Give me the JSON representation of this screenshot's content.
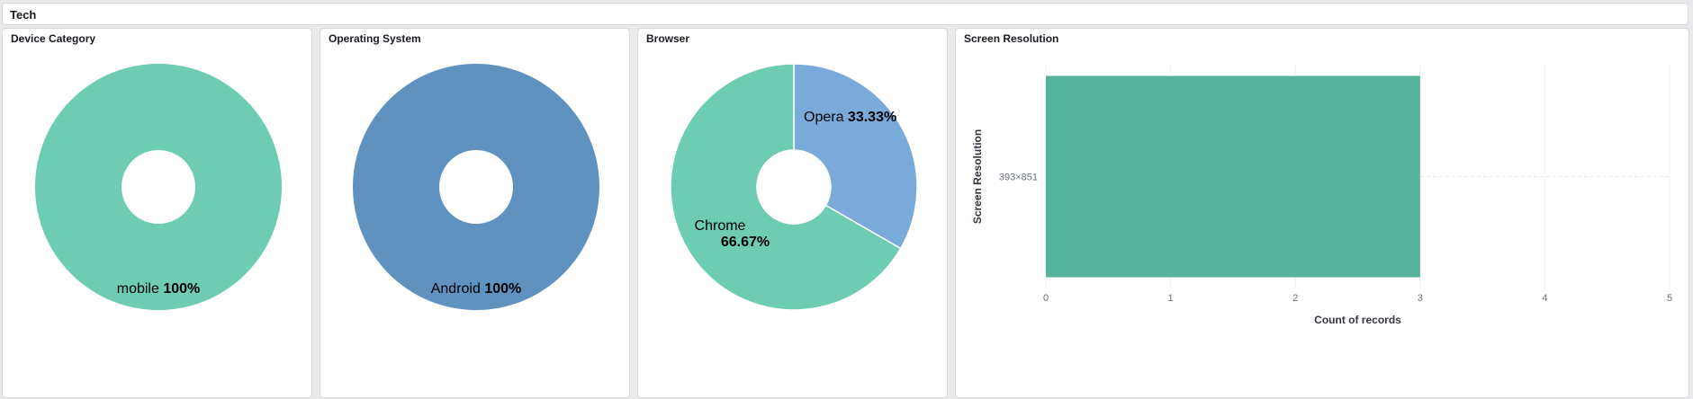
{
  "section_title": "Tech",
  "chart_data": [
    {
      "type": "pie",
      "title": "Device Category",
      "donut": true,
      "slices": [
        {
          "label": "mobile",
          "value": 100,
          "percent_label": "100%",
          "color": "#6dccb1"
        }
      ]
    },
    {
      "type": "pie",
      "title": "Operating System",
      "donut": true,
      "slices": [
        {
          "label": "Android",
          "value": 100,
          "percent_label": "100%",
          "color": "#6092c0"
        }
      ]
    },
    {
      "type": "pie",
      "title": "Browser",
      "donut": true,
      "slices": [
        {
          "label": "Opera",
          "value": 33.33,
          "percent_label": "33.33%",
          "color": "#79aad9"
        },
        {
          "label": "Chrome",
          "value": 66.67,
          "percent_label": "66.67%",
          "color": "#6dccb1"
        }
      ]
    },
    {
      "type": "bar",
      "orientation": "horizontal",
      "title": "Screen Resolution",
      "categories": [
        "393×851"
      ],
      "values": [
        3
      ],
      "xlabel": "Count of records",
      "ylabel": "Screen Resolution",
      "xlim": [
        0,
        5
      ],
      "xticks": [
        0,
        1,
        2,
        3,
        4,
        5
      ],
      "grid": true,
      "color": "#54b399"
    }
  ]
}
